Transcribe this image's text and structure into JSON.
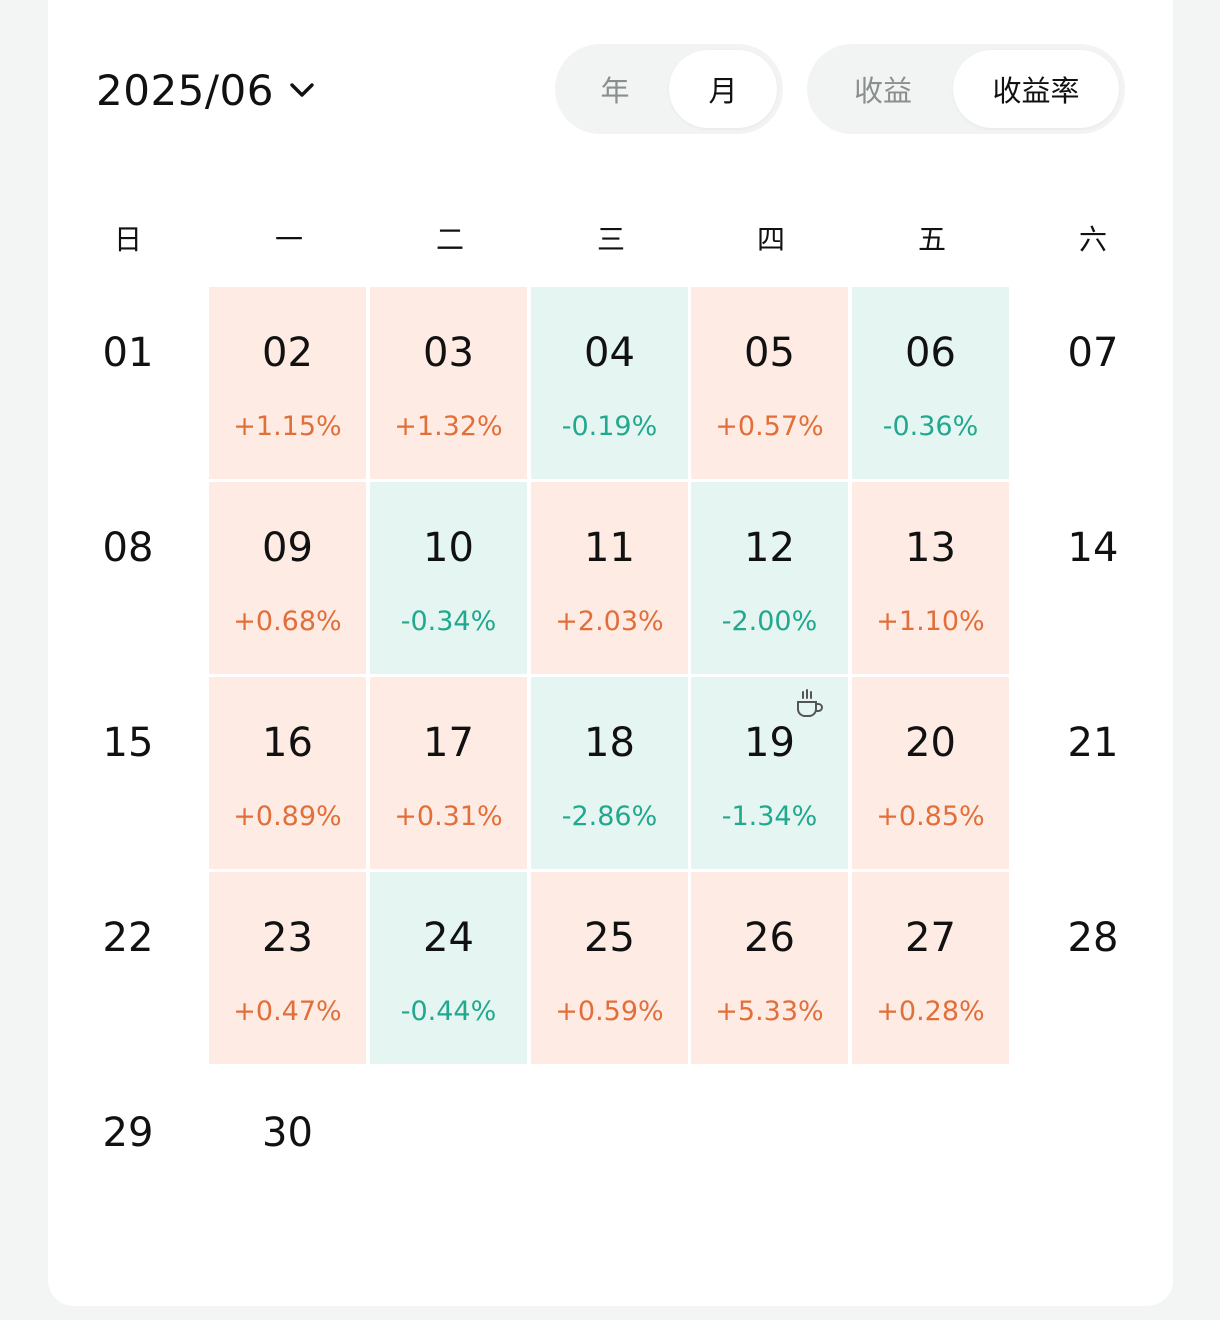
{
  "header": {
    "month_label": "2025/06",
    "period_toggle": [
      {
        "label": "年",
        "active": false
      },
      {
        "label": "月",
        "active": true
      }
    ],
    "metric_toggle": [
      {
        "label": "收益",
        "active": false
      },
      {
        "label": "收益率",
        "active": true
      }
    ]
  },
  "weekdays": [
    "日",
    "一",
    "二",
    "三",
    "四",
    "五",
    "六"
  ],
  "colors": {
    "up": "#e26e3a",
    "up_bg": "#feece4",
    "down": "#22a88f",
    "down_bg": "#e5f6f2"
  },
  "weeks": [
    [
      {
        "day": "01"
      },
      {
        "day": "02",
        "pct": "+1.15%",
        "trend": "up"
      },
      {
        "day": "03",
        "pct": "+1.32%",
        "trend": "up"
      },
      {
        "day": "04",
        "pct": "-0.19%",
        "trend": "down"
      },
      {
        "day": "05",
        "pct": "+0.57%",
        "trend": "up"
      },
      {
        "day": "06",
        "pct": "-0.36%",
        "trend": "down"
      },
      {
        "day": "07"
      }
    ],
    [
      {
        "day": "08"
      },
      {
        "day": "09",
        "pct": "+0.68%",
        "trend": "up"
      },
      {
        "day": "10",
        "pct": "-0.34%",
        "trend": "down"
      },
      {
        "day": "11",
        "pct": "+2.03%",
        "trend": "up"
      },
      {
        "day": "12",
        "pct": "-2.00%",
        "trend": "down"
      },
      {
        "day": "13",
        "pct": "+1.10%",
        "trend": "up"
      },
      {
        "day": "14"
      }
    ],
    [
      {
        "day": "15"
      },
      {
        "day": "16",
        "pct": "+0.89%",
        "trend": "up"
      },
      {
        "day": "17",
        "pct": "+0.31%",
        "trend": "up"
      },
      {
        "day": "18",
        "pct": "-2.86%",
        "trend": "down"
      },
      {
        "day": "19",
        "pct": "-1.34%",
        "trend": "down",
        "icon": "coffee-cup-icon"
      },
      {
        "day": "20",
        "pct": "+0.85%",
        "trend": "up"
      },
      {
        "day": "21"
      }
    ],
    [
      {
        "day": "22"
      },
      {
        "day": "23",
        "pct": "+0.47%",
        "trend": "up"
      },
      {
        "day": "24",
        "pct": "-0.44%",
        "trend": "down"
      },
      {
        "day": "25",
        "pct": "+0.59%",
        "trend": "up"
      },
      {
        "day": "26",
        "pct": "+5.33%",
        "trend": "up"
      },
      {
        "day": "27",
        "pct": "+0.28%",
        "trend": "up"
      },
      {
        "day": "28"
      }
    ],
    [
      {
        "day": "29"
      },
      {
        "day": "30"
      }
    ]
  ]
}
